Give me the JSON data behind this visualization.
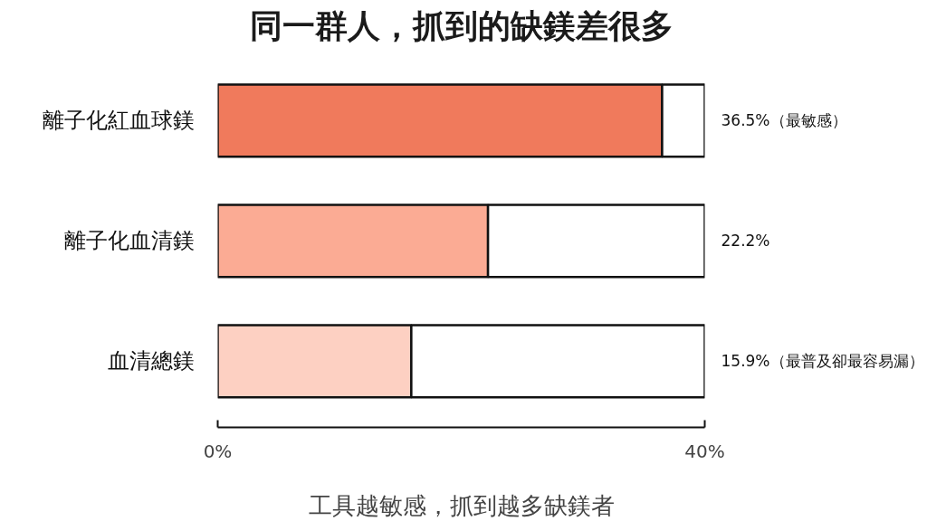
{
  "chart_data": {
    "type": "bar",
    "orientation": "horizontal",
    "stacked": true,
    "title": "同一群人，抓到的缺鎂差很多",
    "xlabel": "工具越敏感，抓到越多缺鎂者",
    "categories": [
      "離子化紅血球鎂",
      "離子化血清鎂",
      "血清總鎂"
    ],
    "series": [
      {
        "colors": [
          "#f07a5c",
          "#fbab94",
          "#fdd0c2"
        ],
        "values": [
          36.5,
          22.2,
          15.9
        ]
      },
      {
        "color": "#ffffff",
        "values": [
          3.5,
          17.8,
          24.1
        ]
      }
    ],
    "value_labels": [
      "36.5%（最敏感）",
      "22.2%",
      "15.9%（最普及卻最容易漏）"
    ],
    "xlim": [
      0,
      40
    ],
    "xticks": [
      {
        "value": 0,
        "label": "0%"
      },
      {
        "value": 40,
        "label": "40%"
      }
    ]
  }
}
